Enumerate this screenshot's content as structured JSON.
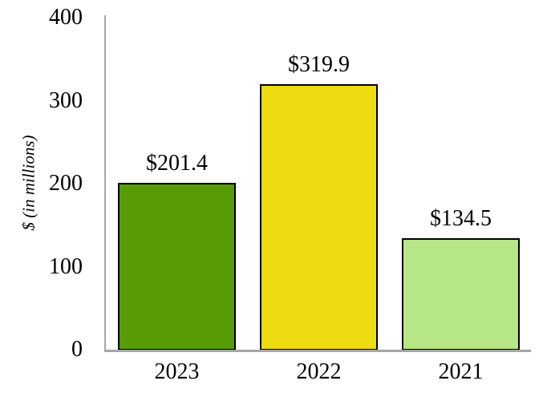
{
  "chart_data": {
    "type": "bar",
    "title": "",
    "xlabel": "",
    "ylabel": "$ (in millions)",
    "categories": [
      "2023",
      "2022",
      "2021"
    ],
    "values": [
      201.4,
      319.9,
      134.5
    ],
    "bar_labels": [
      "$201.4",
      "$319.9",
      "$134.5"
    ],
    "bar_colors": [
      "#579C05",
      "#ECDC10",
      "#B7E686"
    ],
    "bar_border_color": "#000000",
    "axis_color": "#A6A6A6",
    "text_color": "#000000",
    "background": "#FFFFFF",
    "ylim": [
      0,
      400
    ],
    "yticks": [
      0,
      100,
      200,
      300,
      400
    ],
    "grid": false,
    "legend": "none"
  }
}
